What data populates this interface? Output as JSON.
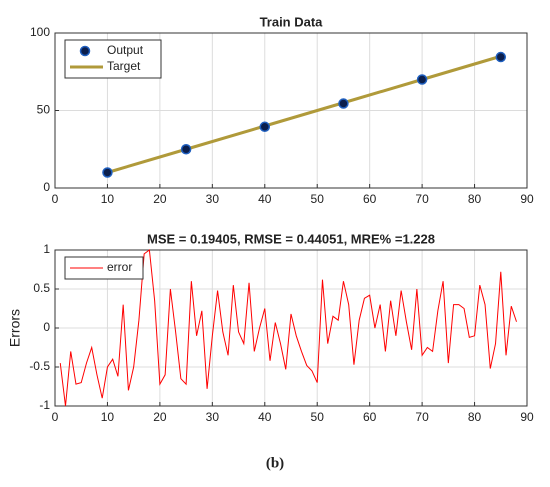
{
  "chart_data": [
    {
      "type": "line",
      "title": "Train Data",
      "grid": true,
      "legend": "upper left",
      "xlim": [
        0,
        90
      ],
      "xticks": [
        0,
        10,
        20,
        30,
        40,
        50,
        60,
        70,
        80,
        90
      ],
      "ylim": [
        0,
        100
      ],
      "yticks": [
        0,
        50,
        100
      ],
      "series": [
        {
          "name": "Output",
          "type": "scatter",
          "color": "#0b1f4d",
          "edgecolor": "#1f5fbf",
          "x": [
            10,
            25,
            40,
            55,
            70,
            85
          ],
          "values": [
            10,
            25,
            39.5,
            54.5,
            70,
            84.5
          ]
        },
        {
          "name": "Target",
          "type": "line",
          "color": "#b09a3a",
          "x": [
            10,
            25,
            40,
            55,
            70,
            85
          ],
          "values": [
            10,
            25,
            40,
            55,
            70,
            85
          ]
        }
      ]
    },
    {
      "type": "line",
      "title": "MSE = 0.19405, RMSE = 0.44051, MRE% =1.228",
      "ylabel": "Errors",
      "grid": true,
      "legend": "upper left",
      "xlim": [
        0,
        90
      ],
      "xticks": [
        0,
        10,
        20,
        30,
        40,
        50,
        60,
        70,
        80,
        90
      ],
      "ylim": [
        -1,
        1
      ],
      "yticks": [
        -1,
        -0.5,
        0,
        0.5,
        1
      ],
      "series": [
        {
          "name": "error",
          "type": "line",
          "color": "#ff0000",
          "x": [
            1,
            2,
            3,
            4,
            5,
            6,
            7,
            8,
            9,
            10,
            11,
            12,
            13,
            14,
            15,
            16,
            17,
            18,
            19,
            20,
            21,
            22,
            23,
            24,
            25,
            26,
            27,
            28,
            29,
            30,
            31,
            32,
            33,
            34,
            35,
            36,
            37,
            38,
            39,
            40,
            41,
            42,
            43,
            44,
            45,
            46,
            47,
            48,
            49,
            50,
            51,
            52,
            53,
            54,
            55,
            56,
            57,
            58,
            59,
            60,
            61,
            62,
            63,
            64,
            65,
            66,
            67,
            68,
            69,
            70,
            71,
            72,
            73,
            74,
            75,
            76,
            77,
            78,
            79,
            80,
            81,
            82,
            83,
            84,
            85,
            86,
            87,
            88
          ],
          "values": [
            -0.45,
            -1.0,
            -0.3,
            -0.72,
            -0.7,
            -0.45,
            -0.25,
            -0.6,
            -0.9,
            -0.5,
            -0.4,
            -0.62,
            0.3,
            -0.8,
            -0.5,
            0.1,
            0.95,
            1.0,
            0.35,
            -0.72,
            -0.6,
            0.5,
            -0.05,
            -0.65,
            -0.72,
            0.6,
            -0.1,
            0.22,
            -0.78,
            -0.1,
            0.48,
            -0.05,
            -0.35,
            0.55,
            -0.05,
            -0.2,
            0.58,
            -0.3,
            0.0,
            0.25,
            -0.42,
            0.07,
            -0.2,
            -0.53,
            0.18,
            -0.1,
            -0.3,
            -0.48,
            -0.55,
            -0.7,
            0.62,
            -0.2,
            0.15,
            0.1,
            0.6,
            0.3,
            -0.47,
            0.1,
            0.38,
            0.42,
            0.0,
            0.3,
            -0.3,
            0.35,
            -0.1,
            0.48,
            0.08,
            -0.28,
            0.5,
            -0.35,
            -0.25,
            -0.3,
            0.22,
            0.6,
            -0.45,
            0.3,
            0.3,
            0.25,
            -0.12,
            -0.1,
            0.55,
            0.3,
            -0.52,
            -0.2,
            0.72,
            -0.35,
            0.28,
            0.08
          ]
        }
      ]
    }
  ],
  "caption": "(b)"
}
